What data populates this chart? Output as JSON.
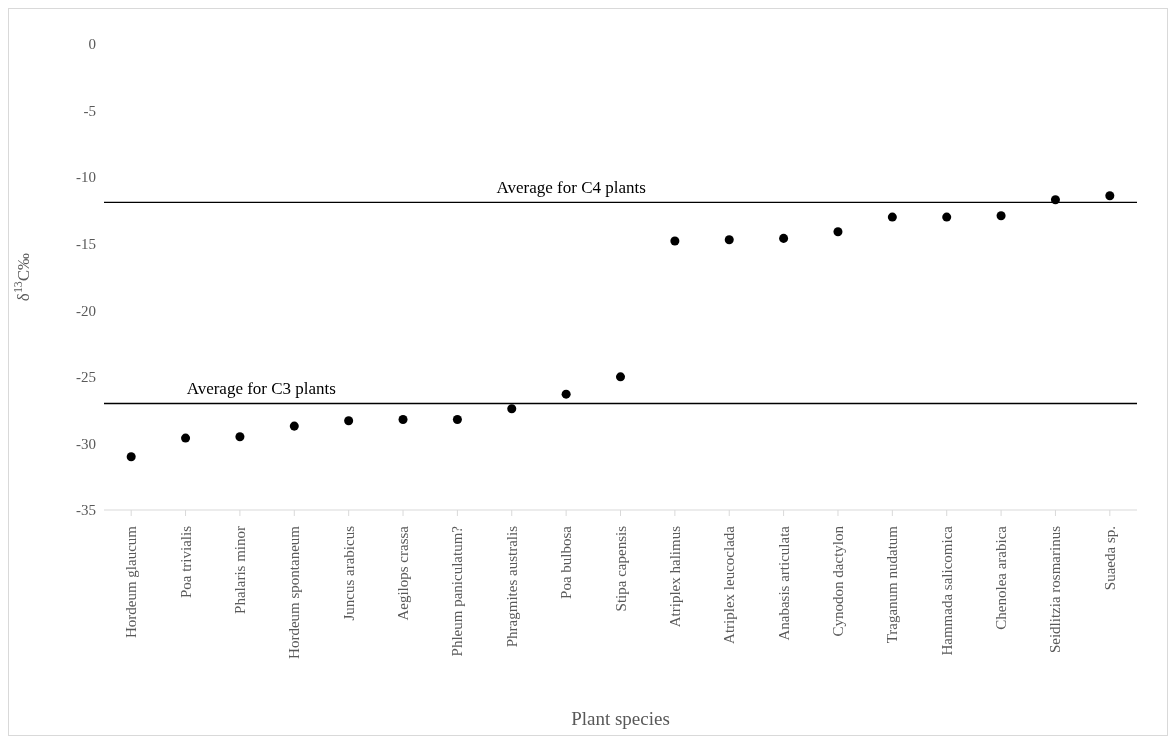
{
  "chart_data": {
    "type": "scatter",
    "xlabel": "Plant species",
    "ylabel": "δ$^{13}$C‰",
    "categories": [
      "Hordeum glaucum",
      "Poa trivialis",
      "Phalaris minor",
      "Hordeum spontaneum",
      "Juncus arabicus",
      "Aegilops crassa",
      "Phleum paniculatum?",
      "Phragmites australis",
      "Poa bulbosa",
      "Stipa capensis",
      "Atriplex halimus",
      "Atriplex leucoclada",
      "Anabasis articulata",
      "Cynodon dactylon",
      "Traganum nudatum",
      "Hammada salicomica",
      "Chenolea arabica",
      "Seidlitzia rosmarinus",
      "Suaeda sp."
    ],
    "values": [
      -31.0,
      -29.6,
      -29.5,
      -28.7,
      -28.3,
      -28.2,
      -28.2,
      -27.4,
      -26.3,
      -25.0,
      -14.8,
      -14.7,
      -14.6,
      -14.1,
      -13.0,
      -13.0,
      -12.9,
      -11.7,
      -11.4
    ],
    "color": "#000000",
    "marker": "circle",
    "ylim": [
      -35,
      0
    ],
    "yticks": [
      -35,
      -30,
      -25,
      -20,
      -15,
      -10,
      -5,
      0
    ],
    "ref_lines": [
      {
        "axis": "y",
        "value": -27,
        "label": "Average  for C3 plants",
        "color": "#000000"
      },
      {
        "axis": "y",
        "value": -11.9,
        "label": "Average  for C4 plants",
        "color": "#000000"
      }
    ]
  }
}
